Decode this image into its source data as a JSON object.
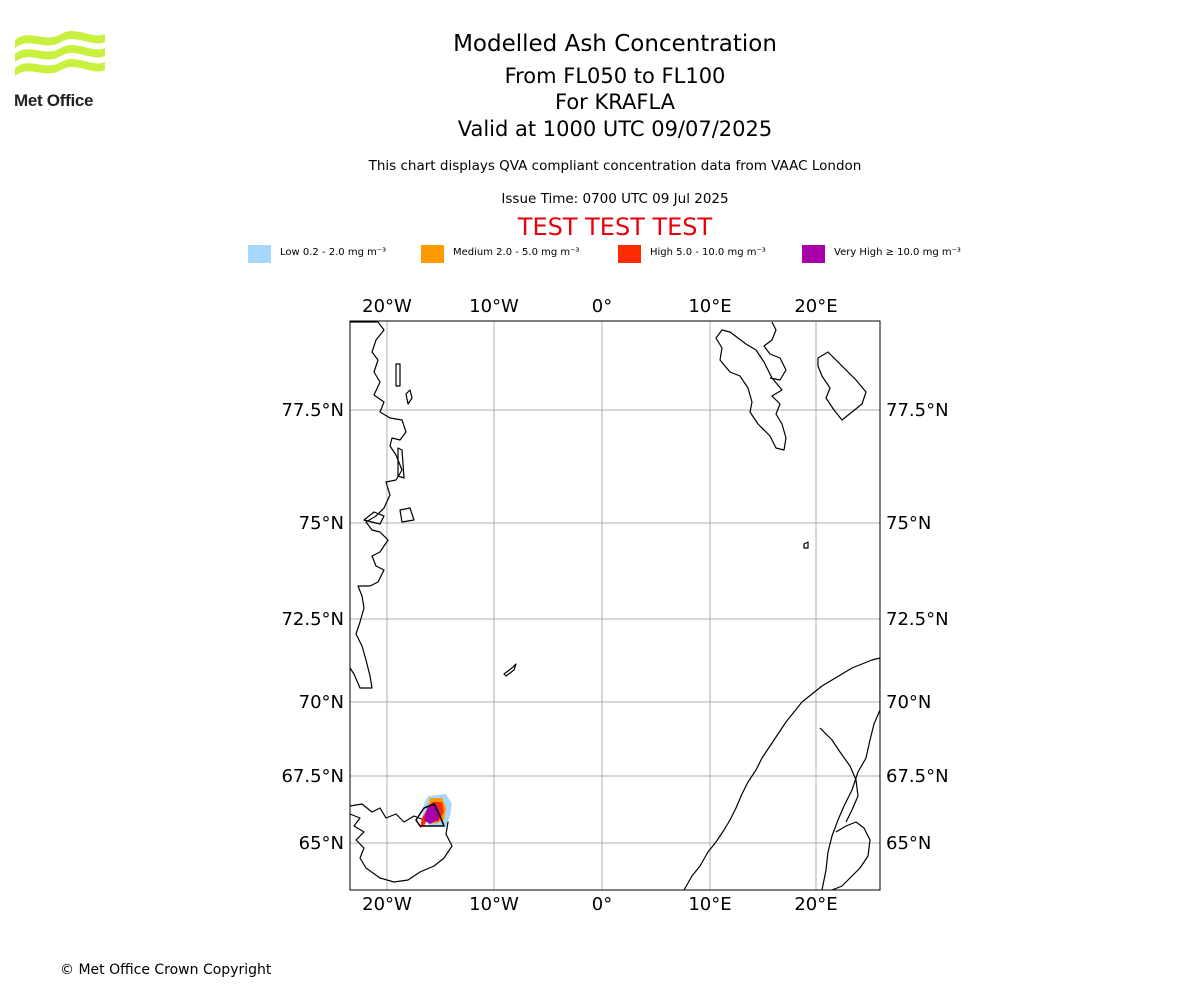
{
  "logo": {
    "text": "Met Office"
  },
  "header": {
    "title": "Modelled Ash Concentration",
    "levels": "From FL050 to FL100",
    "volcano": "For KRAFLA",
    "valid": "Valid at 1000 UTC 09/07/2025",
    "note": "This chart displays QVA compliant concentration data from VAAC London",
    "issue": "Issue Time: 0700 UTC 09 Jul 2025",
    "test_banner": "TEST TEST TEST"
  },
  "legend": [
    {
      "label": "Low 0.2 - 2.0 mg m⁻³",
      "color": "#a6d8ff"
    },
    {
      "label": "Medium 2.0 - 5.0 mg m⁻³",
      "color": "#ff9900"
    },
    {
      "label": "High 5.0 - 10.0 mg m⁻³",
      "color": "#ff2a00"
    },
    {
      "label": "Very High ≥ 10.0 mg m⁻³",
      "color": "#aa00aa"
    }
  ],
  "map": {
    "lon_ticks": [
      "20°W",
      "10°W",
      "0°",
      "10°E",
      "20°E"
    ],
    "lat_ticks": [
      "77.5°N",
      "75°N",
      "72.5°N",
      "70°N",
      "67.5°N",
      "65°N"
    ],
    "grid": true,
    "coastline_color": "#000000",
    "grid_color": "#b0b0b0"
  },
  "footer": {
    "copyright": "© Met Office Crown Copyright"
  }
}
